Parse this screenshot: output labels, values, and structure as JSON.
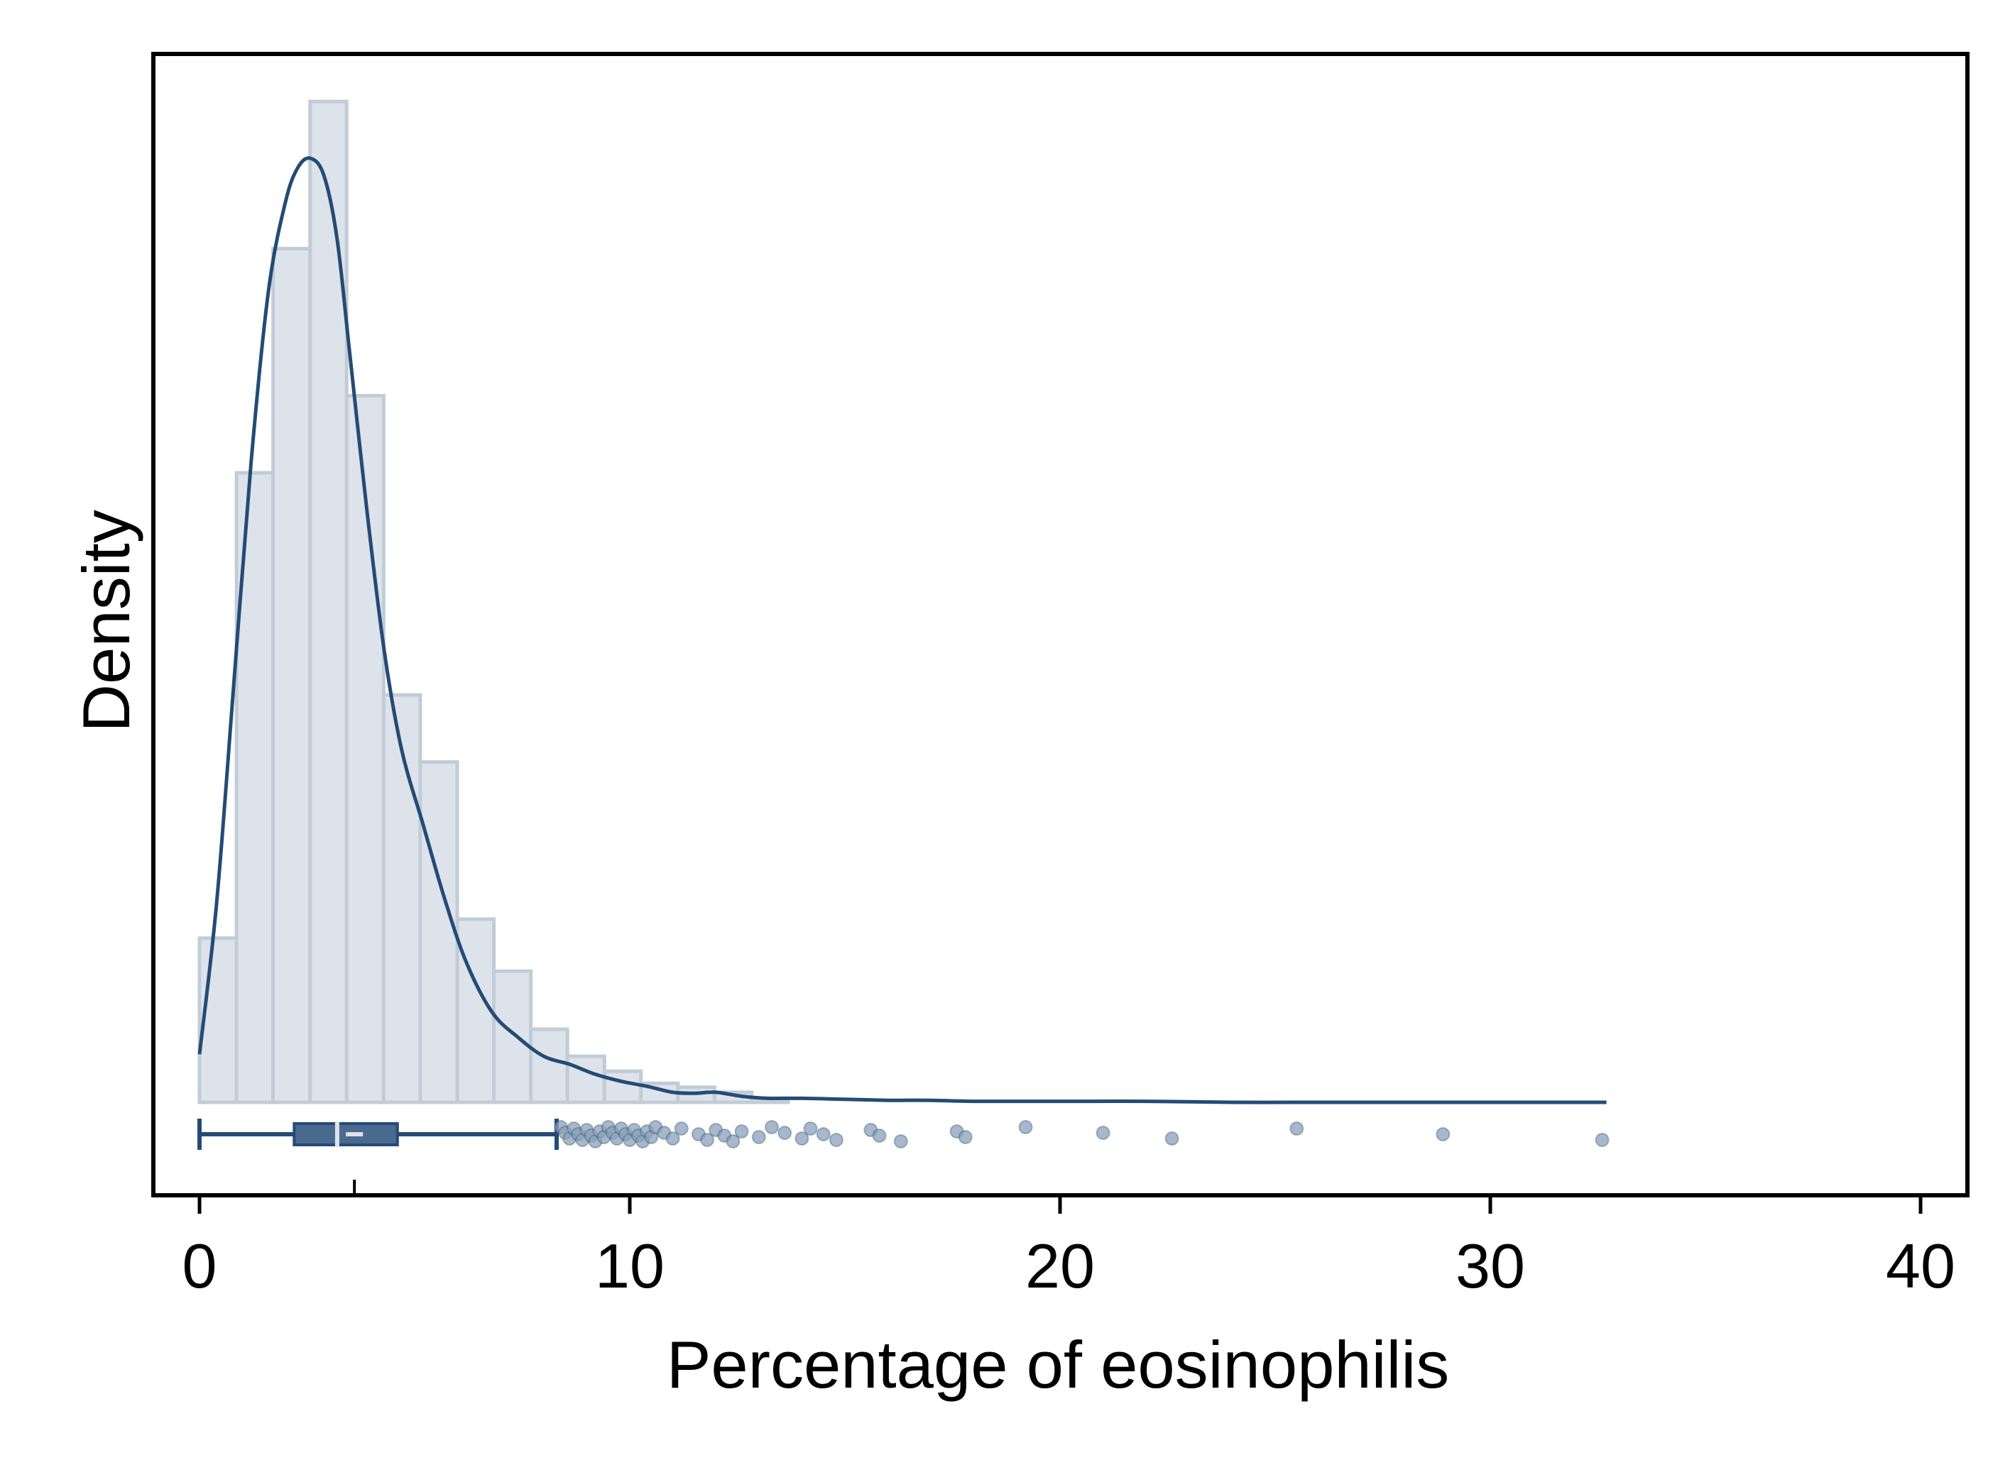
{
  "chart_data": {
    "type": "histogram",
    "title": "",
    "xlabel": "Percentage of eosinophilis",
    "ylabel": "Density",
    "xlim": [
      -1,
      41
    ],
    "ylim": [
      0,
      1
    ],
    "xticks": [
      0,
      10,
      20,
      30,
      40
    ],
    "xtick_labels": [
      "0",
      "10",
      "20",
      "30",
      "40"
    ],
    "y_ticks_shown": false,
    "grid": false,
    "legend": "none",
    "histogram": {
      "bin_edges": [
        0,
        0.86,
        1.71,
        2.57,
        3.42,
        4.28,
        5.13,
        5.99,
        6.84,
        7.7,
        8.55,
        9.41,
        10.26,
        11.12,
        11.97,
        12.83,
        13.68
      ],
      "density_relative": [
        0.164,
        0.629,
        0.853,
        1.0,
        0.706,
        0.407,
        0.34,
        0.183,
        0.131,
        0.073,
        0.046,
        0.031,
        0.019,
        0.015,
        0.01,
        0.004
      ]
    },
    "kde": {
      "x": [
        0,
        0.4,
        0.8,
        1.2,
        1.6,
        2.0,
        2.3,
        2.6,
        2.9,
        3.2,
        3.5,
        3.9,
        4.3,
        4.7,
        5.2,
        5.7,
        6.2,
        6.8,
        7.4,
        8.0,
        8.6,
        9.2,
        9.8,
        10.4,
        11.0,
        11.5,
        12.0,
        12.6,
        13.2,
        14.0,
        15.0,
        16.0,
        17.0,
        18.0,
        20.0,
        22.0,
        24.0,
        26.0,
        28.0,
        30.0,
        32.7
      ],
      "y_relative": [
        0.048,
        0.2,
        0.42,
        0.64,
        0.81,
        0.9,
        0.935,
        0.943,
        0.925,
        0.862,
        0.745,
        0.588,
        0.449,
        0.352,
        0.277,
        0.203,
        0.14,
        0.09,
        0.065,
        0.046,
        0.038,
        0.028,
        0.021,
        0.016,
        0.01,
        0.009,
        0.01,
        0.006,
        0.004,
        0.004,
        0.003,
        0.002,
        0.002,
        0.001,
        0.001,
        0.001,
        0.0,
        0.0,
        0.0,
        0.0,
        0.0
      ]
    },
    "boxplot": {
      "whisker_low": 0,
      "q1": 2.2,
      "median": 3.2,
      "mean": 3.6,
      "q3": 4.6,
      "whisker_high": 8.3,
      "outliers": [
        8.4,
        8.5,
        8.6,
        8.7,
        8.8,
        8.9,
        9.0,
        9.1,
        9.2,
        9.3,
        9.4,
        9.5,
        9.6,
        9.7,
        9.8,
        9.9,
        10.0,
        10.1,
        10.2,
        10.3,
        10.4,
        10.5,
        10.6,
        10.8,
        11.0,
        11.2,
        11.6,
        11.8,
        12.0,
        12.2,
        12.4,
        12.6,
        13.0,
        13.3,
        13.6,
        14.0,
        14.2,
        14.5,
        14.8,
        15.6,
        15.8,
        16.3,
        17.6,
        17.8,
        19.2,
        21.0,
        22.6,
        25.5,
        28.9,
        32.6
      ]
    }
  },
  "colors": {
    "hist_fill": "#dde3ea",
    "hist_edge": "#c2ccd7",
    "line": "#244b75",
    "box_fill": "#4a6a8f",
    "outlier": "#8aa0b8",
    "axis": "#000000"
  }
}
